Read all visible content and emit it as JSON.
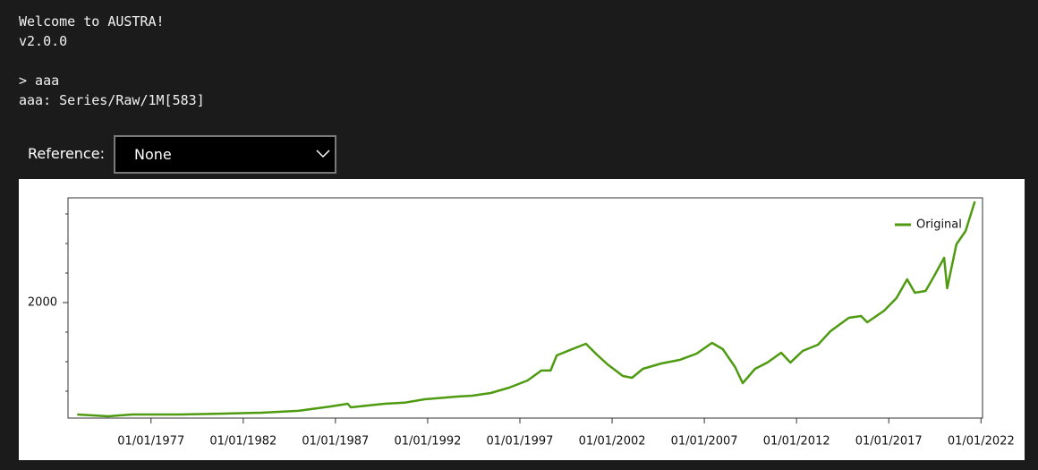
{
  "console": {
    "lines": [
      "Welcome to AUSTRA!",
      "v2.0.0",
      "> aaa",
      "aaa: Series/Raw/1M[583]"
    ]
  },
  "reference": {
    "label": "Reference:",
    "value": "None"
  },
  "chart_data": {
    "type": "line",
    "x": [
      "01/01/1973",
      "09/01/1974",
      "01/01/1976",
      "08/01/1978",
      "01/01/1981",
      "01/01/1983",
      "01/01/1985",
      "10/01/1986",
      "09/01/1987",
      "11/01/1987",
      "09/01/1989",
      "10/01/1990",
      "11/01/1991",
      "08/01/1993",
      "06/01/1994",
      "06/01/1995",
      "06/01/1996",
      "06/01/1997",
      "03/01/1998",
      "09/01/1998",
      "01/01/1999",
      "11/01/1999",
      "08/01/2000",
      "03/01/2001",
      "10/01/2001",
      "08/01/2002",
      "02/01/2003",
      "09/01/2003",
      "09/01/2004",
      "09/01/2005",
      "08/01/2006",
      "06/01/2007",
      "01/01/2008",
      "09/01/2008",
      "02/01/2009",
      "10/01/2009",
      "06/01/2010",
      "03/01/2011",
      "09/01/2011",
      "05/01/2012",
      "03/01/2013",
      "11/01/2013",
      "11/01/2014",
      "07/01/2015",
      "11/01/2015",
      "10/01/2016",
      "06/01/2017",
      "01/01/2018",
      "06/01/2018",
      "01/01/2019",
      "06/01/2019",
      "01/01/2020",
      "03/01/2020",
      "09/01/2020",
      "03/01/2021",
      "09/01/2021"
    ],
    "series": [
      {
        "name": "Original",
        "color": "#4e9a10",
        "values": [
          106,
          76,
          106,
          106,
          121,
          136,
          167,
          242,
          288,
          227,
          288,
          305,
          364,
          409,
          424,
          470,
          561,
          682,
          849,
          849,
          1106,
          1212,
          1303,
          1121,
          955,
          758,
          727,
          879,
          970,
          1030,
          1136,
          1318,
          1212,
          909,
          636,
          879,
          985,
          1152,
          985,
          1182,
          1288,
          1515,
          1742,
          1773,
          1667,
          1864,
          2076,
          2394,
          2167,
          2197,
          2424,
          2758,
          2242,
          2985,
          3212,
          3712
        ]
      }
    ],
    "xlim": [
      "07/01/1972",
      "02/01/2022"
    ],
    "xticks": [
      "01/01/1977",
      "01/01/1982",
      "01/01/1987",
      "01/01/1992",
      "01/01/1997",
      "01/01/2002",
      "01/01/2007",
      "01/01/2012",
      "01/01/2017",
      "01/01/2022"
    ],
    "ylim": [
      45,
      3773
    ],
    "yticks": [
      2000
    ],
    "yminorticks": [
      500,
      1000,
      1500,
      2500,
      3000,
      3500
    ],
    "legend": "top-right"
  }
}
